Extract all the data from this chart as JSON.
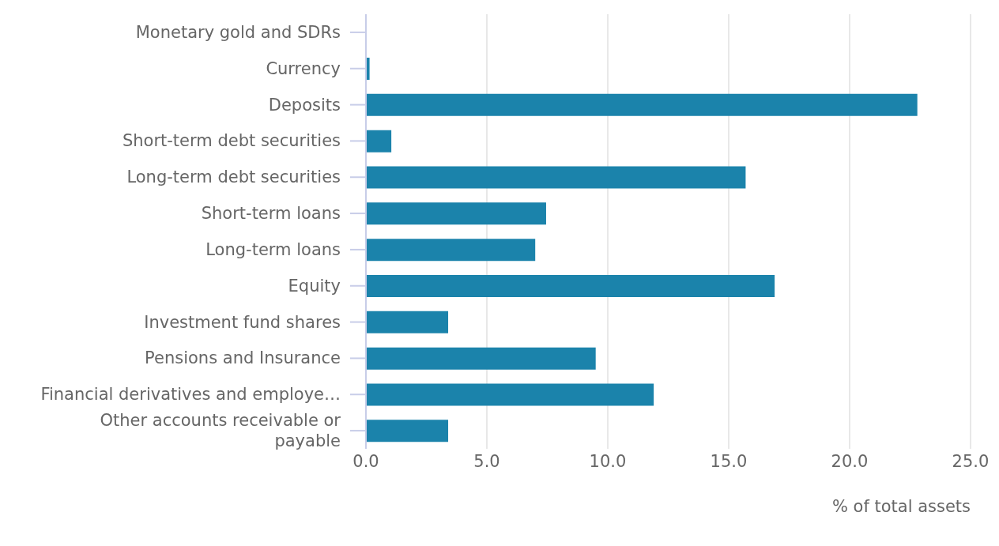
{
  "chart_data": {
    "type": "bar",
    "orientation": "horizontal",
    "xlabel": "% of total assets",
    "categories": [
      "Monetary gold and SDRs",
      "Currency",
      "Deposits",
      "Short-term debt securities",
      "Long-term debt securities",
      "Short-term loans",
      "Long-term loans",
      "Equity",
      "Investment fund shares",
      "Pensions and Insurance",
      "Financial derivatives and employe…",
      "Other accounts receivable or payable"
    ],
    "values": [
      0,
      0.15,
      22.8,
      1.05,
      15.7,
      7.45,
      7.0,
      16.9,
      3.4,
      9.5,
      11.9,
      3.4
    ],
    "color": "#1b83ab",
    "xlim": [
      0,
      25
    ],
    "xticks": [
      {
        "value": 0,
        "label": "0.0"
      },
      {
        "value": 5,
        "label": "5.0"
      },
      {
        "value": 10,
        "label": "10.0"
      },
      {
        "value": 15,
        "label": "15.0"
      },
      {
        "value": 20,
        "label": "20.0"
      },
      {
        "value": 25,
        "label": "25.0"
      }
    ],
    "grid": "x"
  }
}
